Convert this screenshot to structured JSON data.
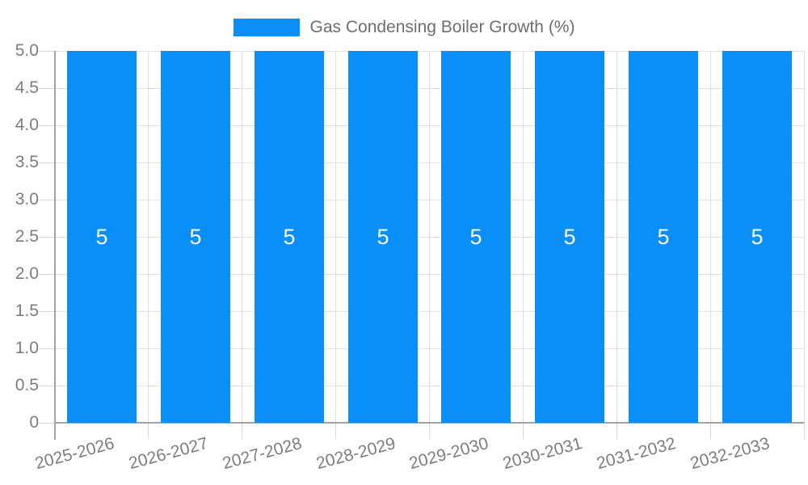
{
  "legend": {
    "label": "Gas Condensing Boiler Growth (%)"
  },
  "chart_data": {
    "type": "bar",
    "title": "",
    "xlabel": "",
    "ylabel": "",
    "categories": [
      "2025-2026",
      "2026-2027",
      "2027-2028",
      "2028-2029",
      "2029-2030",
      "2030-2031",
      "2031-2032",
      "2032-2033"
    ],
    "series": [
      {
        "name": "Gas Condensing Boiler Growth (%)",
        "values": [
          5,
          5,
          5,
          5,
          5,
          5,
          5,
          5
        ]
      }
    ],
    "bar_value_labels": [
      "5",
      "5",
      "5",
      "5",
      "5",
      "5",
      "5",
      "5"
    ],
    "ylim": [
      0,
      5
    ],
    "ytick_step": 0.5,
    "ytick_labels": [
      "5.0",
      "4.5",
      "4.0",
      "3.5",
      "3.0",
      "2.5",
      "2.0",
      "1.5",
      "1.0",
      "0.5",
      "0"
    ],
    "grid": true,
    "legend_position": "top-center",
    "colors": {
      "bar": "#0a8ef8",
      "grid": "#e0e0e0",
      "tick": "#d9d9d9",
      "axis": "#a3a3a3",
      "axis_text": "#7d7d7d",
      "legend_text": "#6e6e6e",
      "bar_label": "#ffffff",
      "background": "#ffffff"
    }
  }
}
